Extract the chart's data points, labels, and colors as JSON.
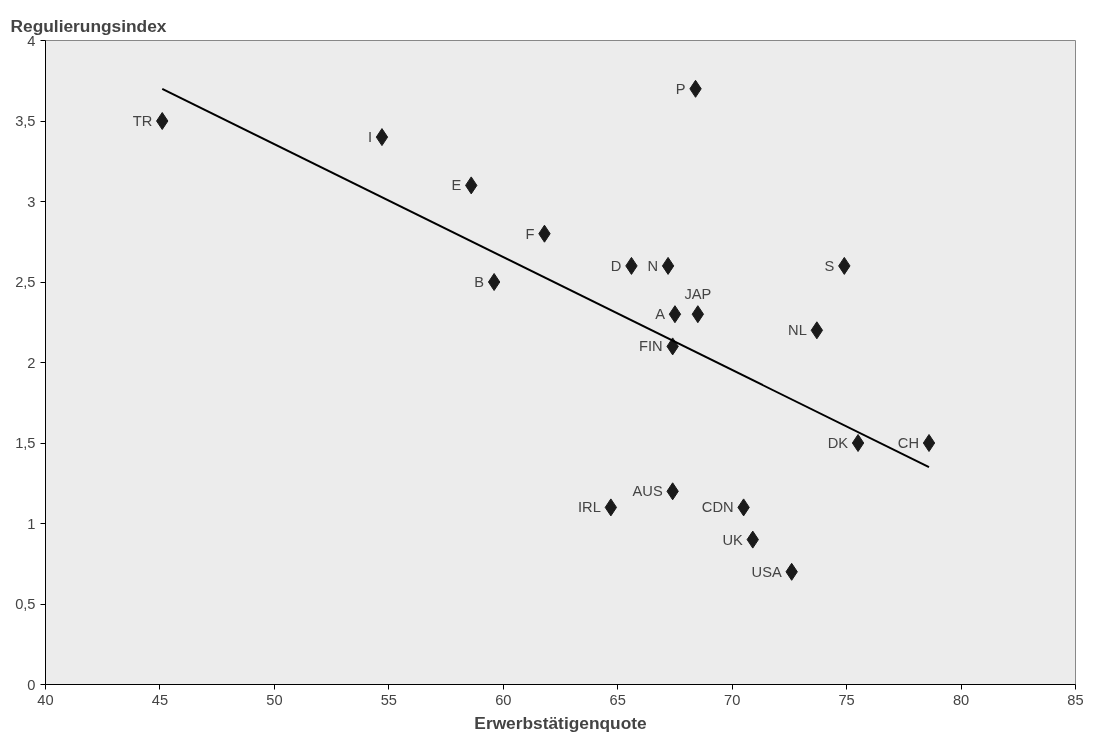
{
  "chart_data": {
    "type": "scatter",
    "xlabel": "Erwerbstätigenquote",
    "ylabel": "Regulierungsindex",
    "xlim": [
      40,
      85
    ],
    "xticks": [
      40,
      45,
      50,
      55,
      60,
      65,
      70,
      75,
      80,
      85
    ],
    "ylim": [
      0,
      4
    ],
    "yticks": [
      0,
      {
        "value": 0.5,
        "label": "0,5"
      },
      1,
      {
        "value": 1.5,
        "label": "1,5"
      },
      2,
      {
        "value": 2.5,
        "label": "2,5"
      },
      3,
      {
        "value": 3.5,
        "label": "3,5"
      },
      4
    ],
    "grid": false,
    "series": [
      {
        "marker": "diamond",
        "color": "#1a1a1a",
        "x": [
          45.1,
          54.7,
          58.6,
          61.8,
          65.6,
          67.2,
          59.6,
          68.4,
          74.9,
          67.5,
          68.5,
          73.7,
          67.4,
          78.6,
          75.5,
          64.7,
          67.4,
          70.5,
          70.9,
          72.6
        ],
        "values": [
          3.5,
          3.4,
          3.1,
          2.8,
          2.6,
          2.6,
          2.5,
          3.7,
          2.6,
          2.3,
          2.3,
          2.2,
          2.1,
          1.5,
          1.5,
          1.1,
          1.2,
          1.1,
          0.9,
          0.7
        ]
      },
      {
        "type": "line",
        "color": "#000000",
        "x": [
          45.1,
          78.6
        ],
        "values": [
          3.7,
          1.35
        ]
      }
    ],
    "annotations": [
      {
        "text": "TR",
        "x": 45.1,
        "y": 3.5
      },
      {
        "text": "I",
        "x": 54.7,
        "y": 3.4
      },
      {
        "text": "E",
        "x": 58.6,
        "y": 3.1
      },
      {
        "text": "F",
        "x": 61.8,
        "y": 2.8
      },
      {
        "text": "D",
        "x": 65.6,
        "y": 2.6
      },
      {
        "text": "N",
        "x": 67.2,
        "y": 2.6
      },
      {
        "text": "B",
        "x": 59.6,
        "y": 2.5
      },
      {
        "text": "P",
        "x": 68.4,
        "y": 3.7
      },
      {
        "text": "S",
        "x": 74.9,
        "y": 2.6
      },
      {
        "text": "A",
        "x": 67.5,
        "y": 2.3
      },
      {
        "text": "JAP",
        "x": 68.5,
        "y": 2.3
      },
      {
        "text": "NL",
        "x": 73.7,
        "y": 2.2
      },
      {
        "text": "FIN",
        "x": 67.4,
        "y": 2.1
      },
      {
        "text": "CH",
        "x": 78.6,
        "y": 1.5
      },
      {
        "text": "DK",
        "x": 75.5,
        "y": 1.5
      },
      {
        "text": "IRL",
        "x": 64.7,
        "y": 1.1
      },
      {
        "text": "AUS",
        "x": 67.4,
        "y": 1.2
      },
      {
        "text": "CDN",
        "x": 70.5,
        "y": 1.1
      },
      {
        "text": "UK",
        "x": 70.9,
        "y": 0.9
      },
      {
        "text": "USA",
        "x": 72.6,
        "y": 0.7
      }
    ]
  }
}
